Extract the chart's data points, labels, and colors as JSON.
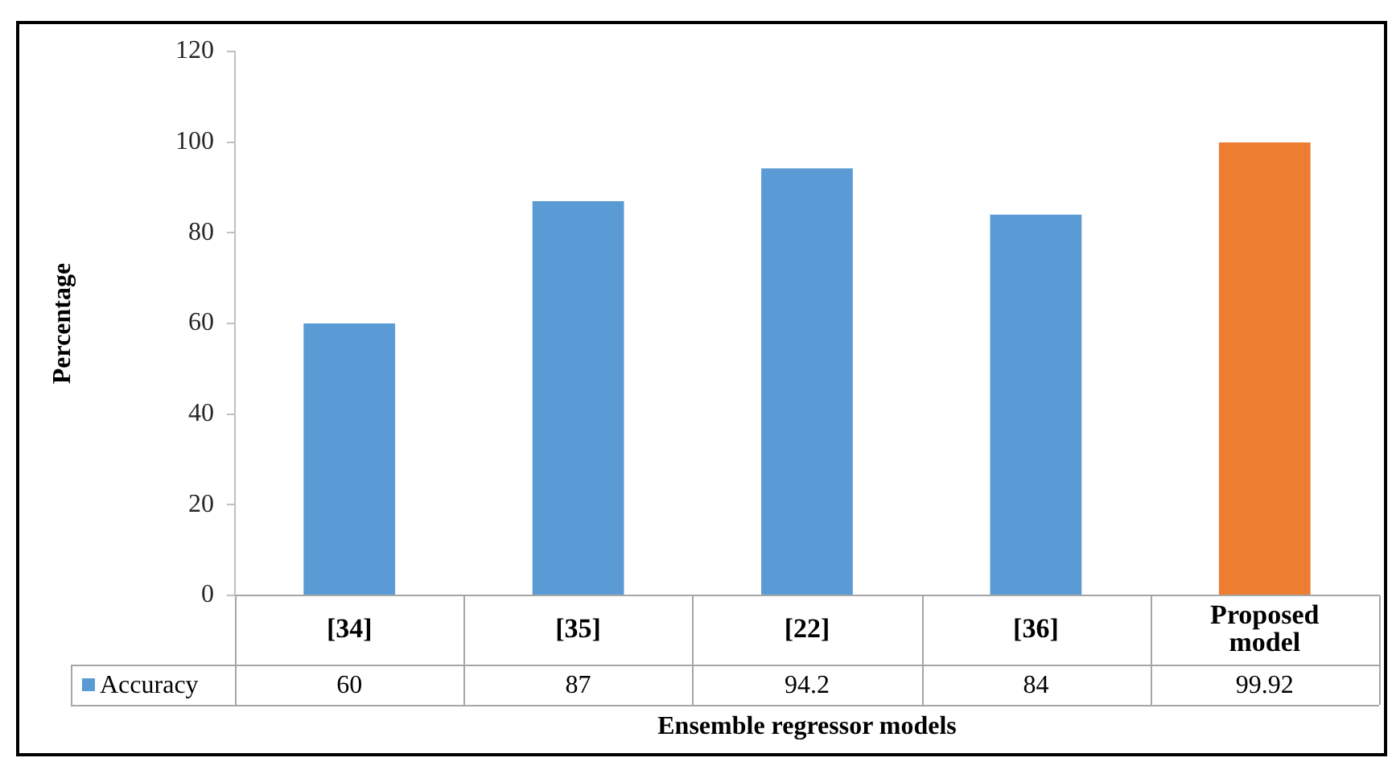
{
  "chart_data": {
    "type": "bar",
    "xlabel": "Ensemble regressor models",
    "ylabel": "Percentage",
    "categories": [
      "[34]",
      "[35]",
      "[22]",
      "[36]",
      "Proposed model"
    ],
    "series": [
      {
        "name": "Accuracy",
        "color": "#5b9bd5",
        "colors": [
          "#5b9bd5",
          "#5b9bd5",
          "#5b9bd5",
          "#5b9bd5",
          "#ed7d31"
        ],
        "values": [
          60,
          87,
          94.2,
          84,
          99.92
        ]
      }
    ],
    "ylim": [
      0,
      120
    ],
    "yticks": [
      0,
      20,
      40,
      60,
      80,
      100,
      120
    ],
    "grid": false,
    "legend": "bottom",
    "data_labels": true
  }
}
